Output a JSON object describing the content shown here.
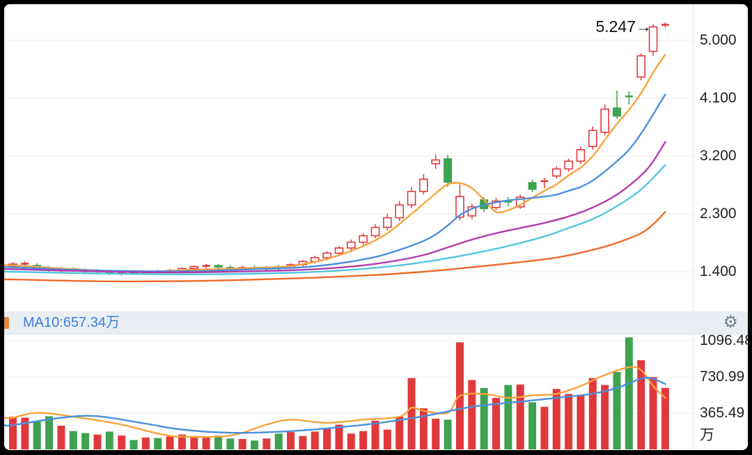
{
  "frame": {
    "background": "#000000",
    "inner_background": "#ffffff"
  },
  "price_panel": {
    "current_price_label": "5.247→",
    "y_axis": {
      "labels": [
        "5.000",
        "4.100",
        "3.200",
        "2.300",
        "1.400"
      ],
      "values": [
        5.0,
        4.1,
        3.2,
        2.3,
        1.4
      ]
    }
  },
  "toolbar": {
    "ma_label": "MA10:657.34万",
    "label_color": "#3d7dd6",
    "gear_glyph": "⚙",
    "fragment_color": "#dd8a3c",
    "background": "#e9eef4"
  },
  "volume_panel": {
    "y_axis": {
      "labels": [
        "1096.48",
        "730.99",
        "365.49"
      ],
      "values": [
        1096.48,
        730.99,
        365.49
      ],
      "unit": "万"
    }
  },
  "chart_data": {
    "type": "candlestick",
    "title": "",
    "unit": "万",
    "price_axis": {
      "grid_max": 5.0,
      "grid_step": 0.9,
      "tick_labels": [
        "5.000",
        "4.100",
        "3.200",
        "2.300",
        "1.400"
      ]
    },
    "volume_axis": {
      "grid_step": 365.49,
      "tick_labels": [
        "1096.48",
        "730.99",
        "365.49"
      ],
      "unit": "万"
    },
    "colors": {
      "up": "#e0393c",
      "down": "#3fa24f",
      "grid": "#ededed",
      "separator": "#e0e0e0",
      "ma5": "#f6a43c",
      "ma10": "#4a8fdb",
      "ma20": "#b23bac",
      "ma30": "#52c5e0",
      "ma60": "#ee6a2c",
      "vol_ma_fast": "#f6a43c",
      "vol_ma_slow": "#4a8fdb"
    },
    "last_price": 5.247,
    "candles": [
      [
        1.49,
        1.55,
        1.44,
        1.52
      ],
      [
        1.52,
        1.56,
        1.46,
        1.53
      ],
      [
        1.5,
        1.53,
        1.43,
        1.46
      ],
      [
        1.46,
        1.49,
        1.4,
        1.43
      ],
      [
        1.43,
        1.47,
        1.39,
        1.45
      ],
      [
        1.45,
        1.47,
        1.4,
        1.42
      ],
      [
        1.42,
        1.45,
        1.37,
        1.4
      ],
      [
        1.4,
        1.44,
        1.36,
        1.42
      ],
      [
        1.42,
        1.43,
        1.35,
        1.37
      ],
      [
        1.37,
        1.41,
        1.34,
        1.39
      ],
      [
        1.39,
        1.42,
        1.36,
        1.38
      ],
      [
        1.38,
        1.42,
        1.35,
        1.4
      ],
      [
        1.4,
        1.43,
        1.37,
        1.39
      ],
      [
        1.39,
        1.44,
        1.37,
        1.42
      ],
      [
        1.42,
        1.47,
        1.4,
        1.45
      ],
      [
        1.45,
        1.5,
        1.42,
        1.48
      ],
      [
        1.48,
        1.52,
        1.45,
        1.5
      ],
      [
        1.5,
        1.52,
        1.45,
        1.47
      ],
      [
        1.47,
        1.5,
        1.43,
        1.45
      ],
      [
        1.45,
        1.49,
        1.42,
        1.47
      ],
      [
        1.47,
        1.5,
        1.43,
        1.45
      ],
      [
        1.45,
        1.49,
        1.42,
        1.47
      ],
      [
        1.48,
        1.51,
        1.42,
        1.46
      ],
      [
        1.46,
        1.53,
        1.44,
        1.51
      ],
      [
        1.51,
        1.58,
        1.48,
        1.56
      ],
      [
        1.56,
        1.65,
        1.53,
        1.62
      ],
      [
        1.62,
        1.72,
        1.58,
        1.69
      ],
      [
        1.69,
        1.8,
        1.65,
        1.77
      ],
      [
        1.77,
        1.9,
        1.73,
        1.86
      ],
      [
        1.86,
        2.0,
        1.82,
        1.96
      ],
      [
        1.96,
        2.14,
        1.92,
        2.09
      ],
      [
        2.09,
        2.3,
        2.04,
        2.24
      ],
      [
        2.24,
        2.5,
        2.19,
        2.44
      ],
      [
        2.44,
        2.72,
        2.39,
        2.65
      ],
      [
        2.65,
        2.92,
        2.6,
        2.84
      ],
      [
        3.08,
        3.22,
        3.0,
        3.14
      ],
      [
        3.16,
        3.22,
        2.72,
        2.79
      ],
      [
        2.25,
        2.76,
        2.2,
        2.57
      ],
      [
        2.27,
        2.46,
        2.22,
        2.41
      ],
      [
        2.52,
        2.56,
        2.33,
        2.38
      ],
      [
        2.4,
        2.55,
        2.36,
        2.5
      ],
      [
        2.5,
        2.56,
        2.42,
        2.48
      ],
      [
        2.41,
        2.6,
        2.38,
        2.56
      ],
      [
        2.79,
        2.83,
        2.64,
        2.68
      ],
      [
        2.8,
        2.86,
        2.7,
        2.82
      ],
      [
        2.89,
        3.04,
        2.85,
        3.0
      ],
      [
        3.0,
        3.16,
        2.96,
        3.12
      ],
      [
        3.12,
        3.35,
        3.08,
        3.3
      ],
      [
        3.35,
        3.66,
        3.3,
        3.6
      ],
      [
        3.57,
        4.0,
        3.52,
        3.93
      ],
      [
        3.95,
        4.22,
        3.78,
        3.82
      ],
      [
        4.14,
        4.21,
        4.0,
        4.12
      ],
      [
        4.43,
        4.8,
        4.38,
        4.76
      ],
      [
        4.83,
        5.25,
        4.76,
        5.21
      ],
      [
        5.24,
        5.28,
        5.2,
        5.247
      ]
    ],
    "volumes": [
      330,
      320,
      285,
      335,
      240,
      185,
      165,
      150,
      180,
      140,
      95,
      120,
      115,
      130,
      150,
      135,
      125,
      140,
      110,
      105,
      90,
      110,
      160,
      175,
      135,
      180,
      210,
      250,
      160,
      185,
      290,
      200,
      330,
      720,
      415,
      310,
      300,
      1080,
      700,
      620,
      520,
      650,
      655,
      475,
      430,
      610,
      560,
      545,
      720,
      650,
      780,
      1130,
      900,
      730,
      620
    ],
    "price_ma_lines": [
      {
        "name": "MA5",
        "color": "#f6a43c",
        "points": [
          [
            0,
            1.5
          ],
          [
            5,
            1.44
          ],
          [
            10,
            1.4
          ],
          [
            15,
            1.43
          ],
          [
            20,
            1.46
          ],
          [
            23,
            1.49
          ],
          [
            26,
            1.6
          ],
          [
            29,
            1.8
          ],
          [
            31,
            2.0
          ],
          [
            33,
            2.3
          ],
          [
            35,
            2.62
          ],
          [
            36,
            2.76
          ],
          [
            37,
            2.78
          ],
          [
            38,
            2.7
          ],
          [
            39,
            2.52
          ],
          [
            40,
            2.33
          ],
          [
            41,
            2.36
          ],
          [
            42,
            2.44
          ],
          [
            43,
            2.55
          ],
          [
            44,
            2.66
          ],
          [
            45,
            2.76
          ],
          [
            46,
            2.9
          ],
          [
            47,
            3.02
          ],
          [
            48,
            3.2
          ],
          [
            49,
            3.45
          ],
          [
            50,
            3.7
          ],
          [
            51,
            3.92
          ],
          [
            52,
            4.18
          ],
          [
            53,
            4.5
          ],
          [
            54,
            4.78
          ]
        ]
      },
      {
        "name": "MA10",
        "color": "#4a8fdb",
        "points": [
          [
            0,
            1.47
          ],
          [
            5,
            1.43
          ],
          [
            10,
            1.41
          ],
          [
            15,
            1.41
          ],
          [
            20,
            1.44
          ],
          [
            24,
            1.47
          ],
          [
            27,
            1.53
          ],
          [
            30,
            1.63
          ],
          [
            32,
            1.74
          ],
          [
            34,
            1.88
          ],
          [
            35,
            1.98
          ],
          [
            36,
            2.12
          ],
          [
            37,
            2.28
          ],
          [
            38,
            2.38
          ],
          [
            39,
            2.44
          ],
          [
            40,
            2.48
          ],
          [
            41,
            2.51
          ],
          [
            42,
            2.53
          ],
          [
            43,
            2.55
          ],
          [
            44,
            2.57
          ],
          [
            45,
            2.6
          ],
          [
            46,
            2.66
          ],
          [
            47,
            2.72
          ],
          [
            48,
            2.82
          ],
          [
            49,
            2.96
          ],
          [
            50,
            3.12
          ],
          [
            51,
            3.3
          ],
          [
            52,
            3.55
          ],
          [
            53,
            3.85
          ],
          [
            54,
            4.16
          ]
        ]
      },
      {
        "name": "MA20",
        "color": "#b23bac",
        "points": [
          [
            0,
            1.44
          ],
          [
            6,
            1.41
          ],
          [
            12,
            1.39
          ],
          [
            18,
            1.4
          ],
          [
            24,
            1.43
          ],
          [
            28,
            1.48
          ],
          [
            31,
            1.55
          ],
          [
            34,
            1.66
          ],
          [
            36,
            1.78
          ],
          [
            38,
            1.9
          ],
          [
            40,
            2.0
          ],
          [
            42,
            2.08
          ],
          [
            44,
            2.16
          ],
          [
            46,
            2.26
          ],
          [
            48,
            2.4
          ],
          [
            50,
            2.6
          ],
          [
            52,
            2.9
          ],
          [
            53,
            3.12
          ],
          [
            54,
            3.42
          ]
        ]
      },
      {
        "name": "MA30",
        "color": "#52c5e0",
        "points": [
          [
            0,
            1.4
          ],
          [
            8,
            1.37
          ],
          [
            16,
            1.36
          ],
          [
            24,
            1.39
          ],
          [
            28,
            1.43
          ],
          [
            32,
            1.5
          ],
          [
            35,
            1.58
          ],
          [
            38,
            1.68
          ],
          [
            41,
            1.8
          ],
          [
            44,
            1.95
          ],
          [
            46,
            2.08
          ],
          [
            48,
            2.22
          ],
          [
            50,
            2.42
          ],
          [
            52,
            2.68
          ],
          [
            54,
            3.06
          ]
        ]
      },
      {
        "name": "MA60",
        "color": "#ee6a2c",
        "points": [
          [
            0,
            1.28
          ],
          [
            8,
            1.25
          ],
          [
            16,
            1.26
          ],
          [
            24,
            1.3
          ],
          [
            30,
            1.35
          ],
          [
            34,
            1.4
          ],
          [
            38,
            1.47
          ],
          [
            42,
            1.55
          ],
          [
            45,
            1.62
          ],
          [
            48,
            1.74
          ],
          [
            50,
            1.85
          ],
          [
            52,
            2.0
          ],
          [
            53,
            2.14
          ],
          [
            54,
            2.33
          ]
        ]
      }
    ],
    "volume_ma_lines": [
      {
        "name": "VOL-MA5",
        "color": "#f6a43c",
        "points": [
          [
            0,
            320
          ],
          [
            2,
            370
          ],
          [
            5,
            330
          ],
          [
            9,
            250
          ],
          [
            12,
            160
          ],
          [
            14,
            128
          ],
          [
            18,
            140
          ],
          [
            21,
            250
          ],
          [
            23,
            300
          ],
          [
            26,
            268
          ],
          [
            29,
            300
          ],
          [
            32,
            330
          ],
          [
            33,
            420
          ],
          [
            34,
            390
          ],
          [
            36,
            370
          ],
          [
            37,
            540
          ],
          [
            39,
            560
          ],
          [
            41,
            520
          ],
          [
            43,
            545
          ],
          [
            45,
            560
          ],
          [
            47,
            640
          ],
          [
            49,
            750
          ],
          [
            51,
            830
          ],
          [
            52,
            800
          ],
          [
            53,
            640
          ],
          [
            54,
            520
          ]
        ]
      },
      {
        "name": "VOL-MA10",
        "color": "#4a8fdb",
        "points": [
          [
            0,
            245
          ],
          [
            4,
            320
          ],
          [
            7,
            335
          ],
          [
            11,
            260
          ],
          [
            14,
            200
          ],
          [
            18,
            168
          ],
          [
            22,
            178
          ],
          [
            26,
            212
          ],
          [
            30,
            262
          ],
          [
            34,
            335
          ],
          [
            38,
            430
          ],
          [
            42,
            482
          ],
          [
            45,
            520
          ],
          [
            48,
            562
          ],
          [
            50,
            620
          ],
          [
            52,
            715
          ],
          [
            53,
            712
          ],
          [
            54,
            660
          ]
        ]
      }
    ]
  }
}
